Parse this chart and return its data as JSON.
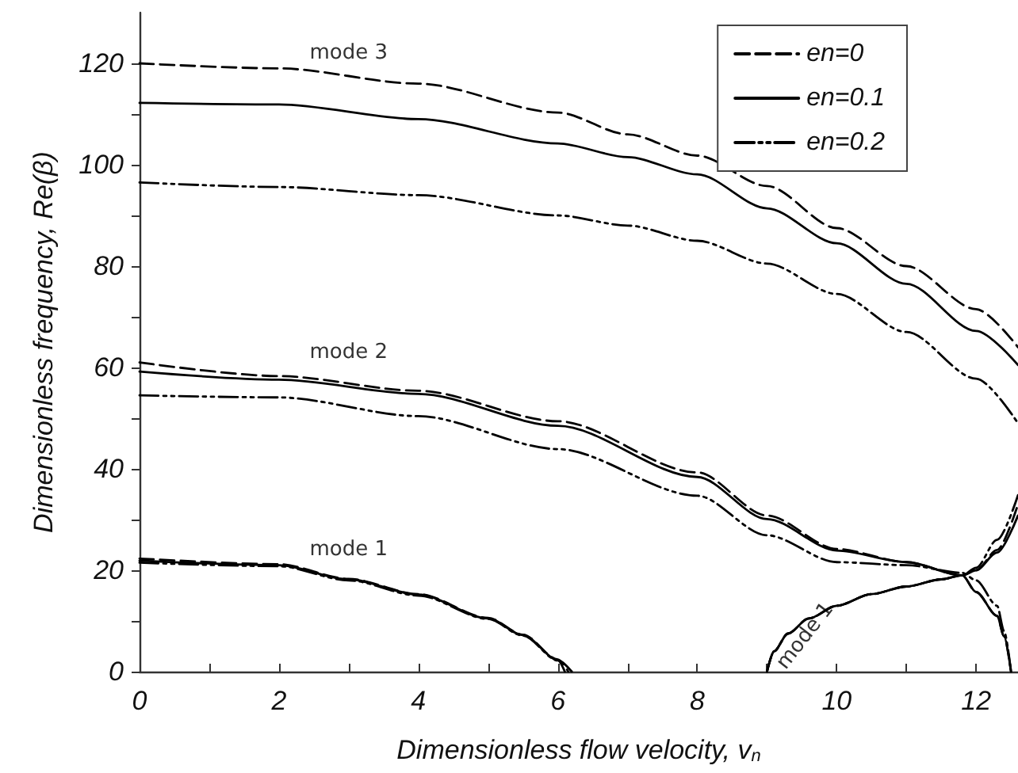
{
  "chart_data": {
    "type": "line",
    "xlabel": "Dimensionless flow velocity, v$_{n}$",
    "ylabel": "Dimensionless frequency, Re(β)",
    "xlim": [
      0,
      12.6
    ],
    "ylim": [
      0,
      130
    ],
    "xticks": [
      0,
      {
        "value": 1,
        "label": null
      },
      2,
      {
        "value": 3,
        "label": null
      },
      4,
      {
        "value": 5,
        "label": null
      },
      6,
      {
        "value": 7,
        "label": null
      },
      8,
      {
        "value": 9,
        "label": null
      },
      10,
      {
        "value": 11,
        "label": null
      },
      12
    ],
    "yticks": [
      0,
      {
        "value": 10,
        "label": null
      },
      20,
      {
        "value": 30,
        "label": null
      },
      40,
      {
        "value": 50,
        "label": null
      },
      60,
      {
        "value": 70,
        "label": null
      },
      80,
      {
        "value": 90,
        "label": null
      },
      100,
      {
        "value": 110,
        "label": null
      },
      120
    ],
    "grid": false,
    "legend": "top right",
    "marker": "none",
    "series": [
      {
        "name": "en=0",
        "color": "#000000",
        "line_style": "dashed",
        "x": [
          0,
          2,
          4,
          6,
          7,
          8,
          9,
          10,
          11,
          12,
          12.6
        ],
        "values": [
          120,
          119,
          116,
          110.3,
          106,
          101.8,
          95.8,
          87.5,
          80,
          71.5,
          64
        ]
      },
      {
        "name": "en=0.1",
        "color": "#000000",
        "line_style": "solid",
        "x": [
          0,
          2,
          4,
          6,
          7,
          8,
          9,
          10,
          11,
          12,
          12.6
        ],
        "values": [
          112.2,
          111.9,
          109,
          104.2,
          101.5,
          98.1,
          91.4,
          84.5,
          76.5,
          67.2,
          60.5
        ]
      },
      {
        "name": "en=0.2",
        "color": "#000000",
        "line_style": "dotted",
        "x": [
          0,
          2,
          4,
          6,
          7,
          8,
          9,
          10,
          11,
          12,
          12.6
        ],
        "values": [
          96.5,
          95.6,
          94,
          90,
          88,
          85,
          80.5,
          74.5,
          67,
          57.8,
          49
        ]
      },
      {
        "color": "#000000",
        "line_style": "dashed",
        "x": [
          0,
          2,
          4,
          6,
          8,
          9,
          10,
          11,
          11.8,
          12,
          12.3,
          12.4,
          12.5
        ],
        "values": [
          61,
          58.3,
          55.4,
          49.4,
          39.3,
          30.8,
          24.2,
          21.6,
          19,
          15.7,
          11,
          7,
          0
        ]
      },
      {
        "color": "#000000",
        "line_style": "solid",
        "x": [
          0,
          2,
          4,
          6,
          8,
          9,
          10,
          11,
          11.8,
          12,
          12.3,
          12.4,
          12.5
        ],
        "values": [
          59.2,
          57.6,
          54.8,
          48.5,
          38.4,
          30.1,
          23.9,
          21.6,
          19,
          15.7,
          11,
          7,
          0
        ]
      },
      {
        "color": "#000000",
        "line_style": "dotted",
        "x": [
          0,
          2,
          4,
          6,
          8,
          9,
          10,
          11,
          11.8,
          12,
          12.3,
          12.4,
          12.5
        ],
        "values": [
          54.5,
          54.1,
          50.4,
          43.9,
          34.7,
          26.9,
          21.6,
          21,
          19.5,
          18,
          13,
          8,
          0
        ]
      },
      {
        "color": "#000000",
        "line_style": "dashed",
        "x": [
          0,
          2,
          3,
          4,
          5,
          5.5,
          6,
          6.15
        ],
        "values": [
          22.3,
          21.2,
          18.3,
          15.3,
          10.6,
          7.3,
          2.4,
          0
        ]
      },
      {
        "color": "#000000",
        "line_style": "solid",
        "x": [
          0,
          2,
          3,
          4,
          5,
          5.5,
          6,
          6.2
        ],
        "values": [
          21.9,
          21,
          18.2,
          15.2,
          10.5,
          7.2,
          2.3,
          0
        ]
      },
      {
        "color": "#000000",
        "line_style": "dotted",
        "x": [
          0,
          2,
          3,
          4,
          5,
          5.5,
          6,
          6.1
        ],
        "values": [
          21.5,
          20.8,
          18,
          15,
          10.4,
          7.1,
          2.2,
          0
        ]
      },
      {
        "color": "#000000",
        "line_style": "dashed",
        "x": [
          9,
          9.1,
          9.3,
          9.6,
          10,
          10.5,
          11,
          11.5,
          11.8,
          12,
          12.3,
          12.6
        ],
        "values": [
          0,
          4,
          7.5,
          10.5,
          13,
          15.3,
          16.8,
          18.2,
          19,
          20,
          24,
          33
        ]
      },
      {
        "color": "#000000",
        "line_style": "solid",
        "x": [
          9,
          9.1,
          9.3,
          9.6,
          10,
          10.5,
          11,
          11.5,
          11.8,
          12,
          12.3,
          12.6
        ],
        "values": [
          0,
          4,
          7.5,
          10.5,
          13,
          15.3,
          16.8,
          18.2,
          19,
          20,
          23.5,
          30.8
        ]
      },
      {
        "color": "#000000",
        "line_style": "dotted",
        "x": [
          9,
          9.1,
          9.3,
          9.6,
          10,
          10.5,
          11,
          11.5,
          11.8,
          12,
          12.3,
          12.6
        ],
        "values": [
          0,
          4,
          7.5,
          10.5,
          13,
          15.3,
          16.8,
          18.2,
          19,
          20.5,
          26,
          34.8
        ]
      }
    ],
    "annotations": [
      "mode 3",
      "mode 2",
      "mode 1",
      "mode 1"
    ]
  }
}
